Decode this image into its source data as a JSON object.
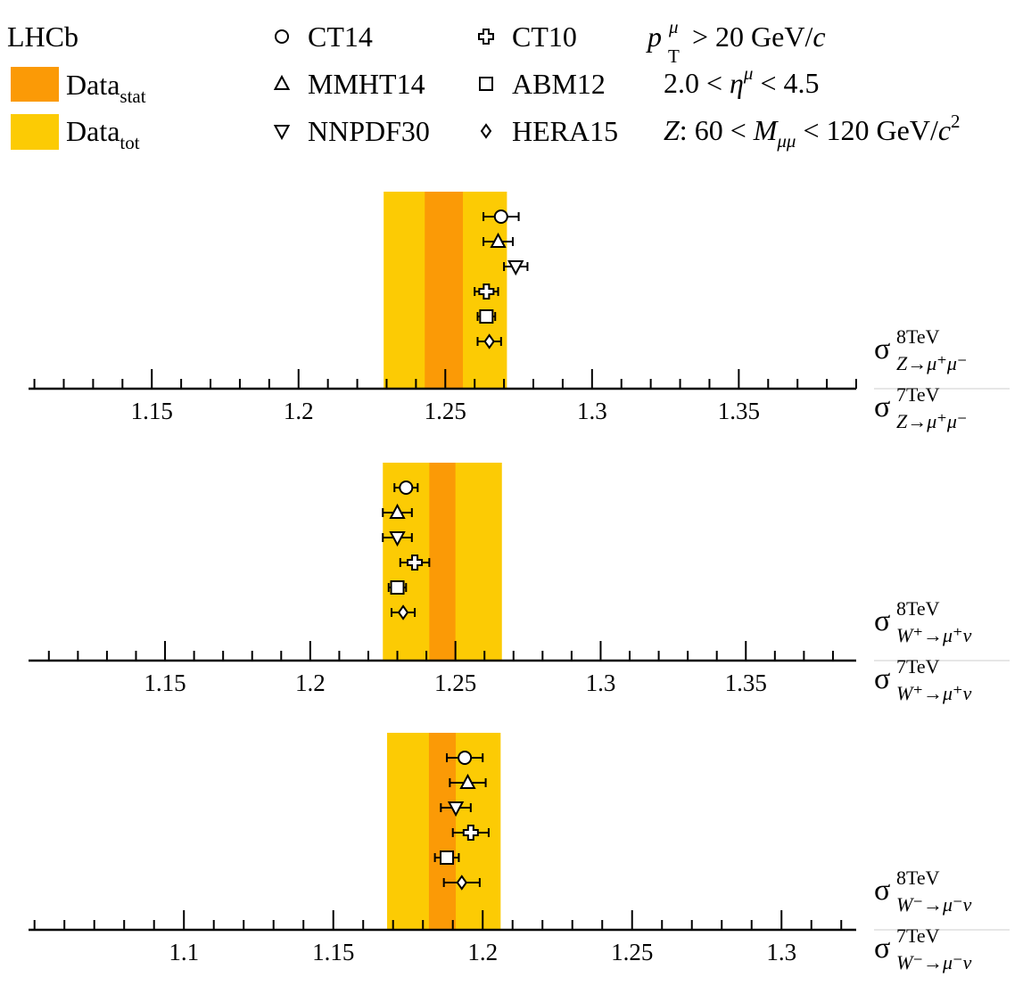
{
  "legend": {
    "experiment": "LHCb",
    "data_stat": {
      "main": "Data",
      "sub": "stat",
      "color": "#fb9a06"
    },
    "data_tot": {
      "main": "Data",
      "sub": "tot",
      "color": "#fccb04"
    },
    "models": [
      {
        "name": "CT14",
        "marker": "circle"
      },
      {
        "name": "MMHT14",
        "marker": "triangle-up"
      },
      {
        "name": "NNPDF30",
        "marker": "triangle-down"
      },
      {
        "name": "CT10",
        "marker": "cross"
      },
      {
        "name": "ABM12",
        "marker": "square"
      },
      {
        "name": "HERA15",
        "marker": "diamond"
      }
    ],
    "cuts": [
      "p_T^μ > 20 GeV/c",
      "2.0 < η^μ < 4.5",
      "Z: 60 < M_μμ < 120 GeV/c²"
    ]
  },
  "chart_data": [
    {
      "type": "scatter",
      "ratio_label": {
        "num_sup": "8TeV",
        "num_sub": "Z→μ⁺μ⁻",
        "den_sup": "7TeV",
        "den_sub": "Z→μ⁺μ⁻"
      },
      "xlim": [
        1.108,
        1.39
      ],
      "ticks": [
        1.15,
        1.2,
        1.25,
        1.3,
        1.35
      ],
      "tick_labels": [
        "1.15",
        "1.2",
        "1.25",
        "1.3",
        "1.35"
      ],
      "data_tot": [
        1.229,
        1.271
      ],
      "data_stat": [
        1.243,
        1.256
      ],
      "points": [
        {
          "name": "CT14",
          "value": 1.269,
          "err": 0.006
        },
        {
          "name": "MMHT14",
          "value": 1.268,
          "err": 0.005
        },
        {
          "name": "NNPDF30",
          "value": 1.274,
          "err": 0.004
        },
        {
          "name": "CT10",
          "value": 1.264,
          "err": 0.004
        },
        {
          "name": "ABM12",
          "value": 1.264,
          "err": 0.003
        },
        {
          "name": "HERA15",
          "value": 1.265,
          "err": 0.004
        }
      ]
    },
    {
      "type": "scatter",
      "ratio_label": {
        "num_sup": "8TeV",
        "num_sub": "W⁺→μ⁺ν",
        "den_sup": "7TeV",
        "den_sub": "W⁺→μ⁺ν"
      },
      "xlim": [
        1.103,
        1.388
      ],
      "ticks": [
        1.15,
        1.2,
        1.25,
        1.3,
        1.35
      ],
      "tick_labels": [
        "1.15",
        "1.2",
        "1.25",
        "1.3",
        "1.35"
      ],
      "data_tot": [
        1.225,
        1.266
      ],
      "data_stat": [
        1.241,
        1.25
      ],
      "points": [
        {
          "name": "CT14",
          "value": 1.233,
          "err": 0.004
        },
        {
          "name": "MMHT14",
          "value": 1.23,
          "err": 0.005
        },
        {
          "name": "NNPDF30",
          "value": 1.23,
          "err": 0.005
        },
        {
          "name": "CT10",
          "value": 1.236,
          "err": 0.005
        },
        {
          "name": "ABM12",
          "value": 1.23,
          "err": 0.003
        },
        {
          "name": "HERA15",
          "value": 1.232,
          "err": 0.004
        }
      ]
    },
    {
      "type": "scatter",
      "ratio_label": {
        "num_sup": "8TeV",
        "num_sub": "W⁻→μ⁻ν",
        "den_sup": "7TeV",
        "den_sub": "W⁻→μ⁻ν"
      },
      "xlim": [
        1.048,
        1.325
      ],
      "ticks": [
        1.1,
        1.15,
        1.2,
        1.25,
        1.3
      ],
      "tick_labels": [
        "1.1",
        "1.15",
        "1.2",
        "1.25",
        "1.3"
      ],
      "data_tot": [
        1.168,
        1.206
      ],
      "data_stat": [
        1.182,
        1.191
      ],
      "points": [
        {
          "name": "CT14",
          "value": 1.194,
          "err": 0.006
        },
        {
          "name": "MMHT14",
          "value": 1.195,
          "err": 0.006
        },
        {
          "name": "NNPDF30",
          "value": 1.191,
          "err": 0.005
        },
        {
          "name": "CT10",
          "value": 1.196,
          "err": 0.006
        },
        {
          "name": "ABM12",
          "value": 1.188,
          "err": 0.004
        },
        {
          "name": "HERA15",
          "value": 1.193,
          "err": 0.006
        }
      ]
    }
  ]
}
